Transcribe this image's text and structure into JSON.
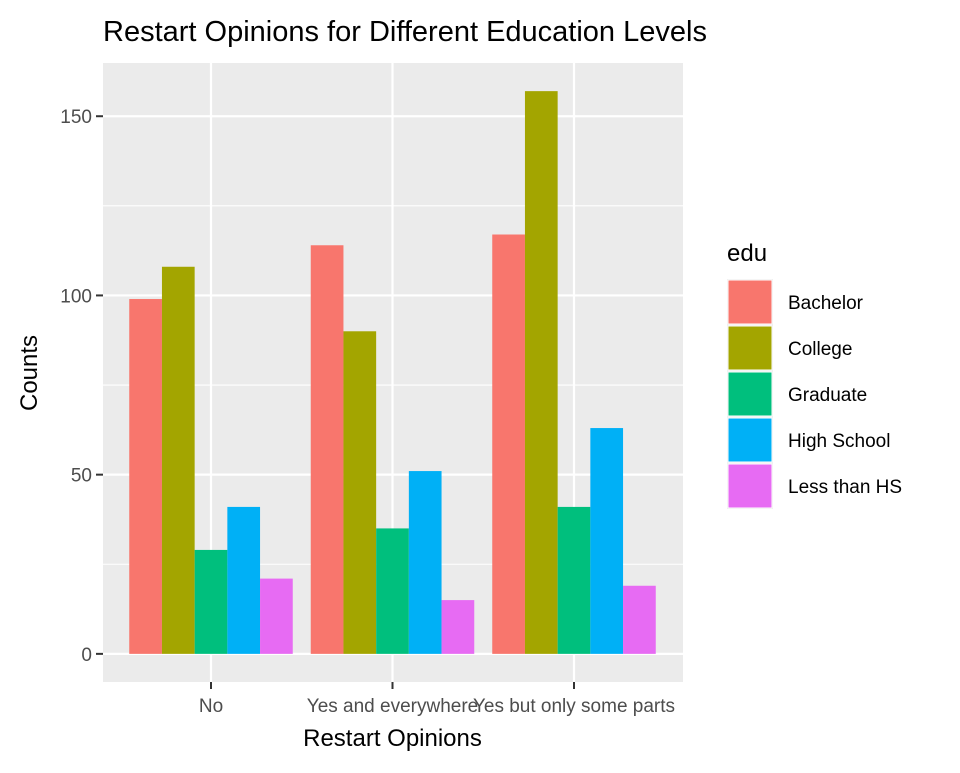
{
  "chart_data": {
    "type": "bar",
    "title": "Restart Opinions for Different Education Levels",
    "xlabel": "Restart Opinions",
    "ylabel": "Counts",
    "categories": [
      "No",
      "Yes and everywhere",
      "Yes but only some parts"
    ],
    "series": [
      {
        "name": "Bachelor",
        "color": "#F8766D",
        "values": [
          99,
          114,
          117
        ]
      },
      {
        "name": "College",
        "color": "#A3A500",
        "values": [
          108,
          90,
          157
        ]
      },
      {
        "name": "Graduate",
        "color": "#00BF7D",
        "values": [
          29,
          35,
          41
        ]
      },
      {
        "name": "High School",
        "color": "#00B0F6",
        "values": [
          41,
          51,
          63
        ]
      },
      {
        "name": "Less than HS",
        "color": "#E76BF3",
        "values": [
          21,
          15,
          19
        ]
      }
    ],
    "ylim": [
      -7.85,
      164.85
    ],
    "yticks": [
      0,
      50,
      100,
      150
    ],
    "legend": {
      "title": "edu",
      "position": "right"
    },
    "grid": true,
    "theme": {
      "panel_background": "#EBEBEB",
      "grid_color": "#FFFFFF",
      "tick_label_color": "#4D4D4D",
      "text_color": "#000000"
    }
  }
}
